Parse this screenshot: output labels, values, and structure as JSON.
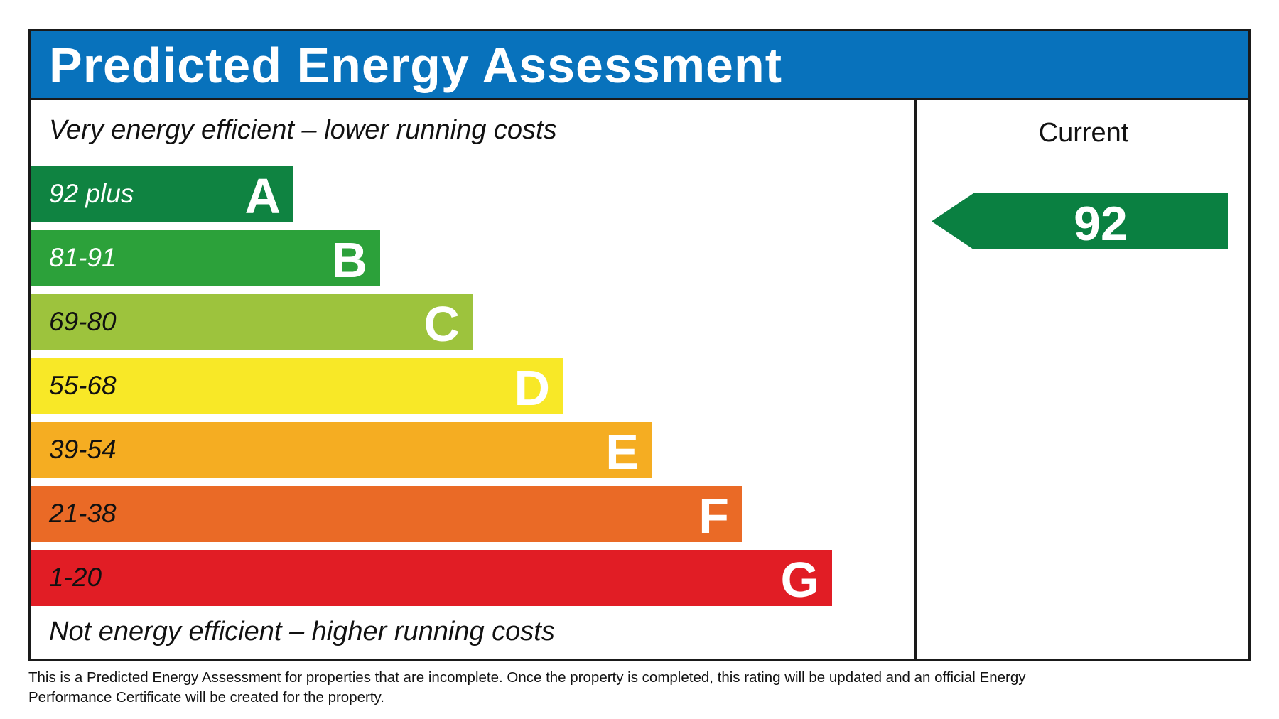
{
  "header": {
    "title": "Predicted Energy Assessment",
    "color": "#0872bc"
  },
  "top_note": "Very energy efficient – lower running costs",
  "bottom_note": "Not energy efficient – higher running costs",
  "bands": [
    {
      "range": "92 plus",
      "letter": "A",
      "color": "#0f8341",
      "text_color": "#ffffff"
    },
    {
      "range": "81-91",
      "letter": "B",
      "color": "#2ca13a",
      "text_color": "#ffffff"
    },
    {
      "range": "69-80",
      "letter": "C",
      "color": "#9dc33d",
      "text_color": "#111111"
    },
    {
      "range": "55-68",
      "letter": "D",
      "color": "#f8e827",
      "text_color": "#111111"
    },
    {
      "range": "39-54",
      "letter": "E",
      "color": "#f5ad22",
      "text_color": "#111111"
    },
    {
      "range": "21-38",
      "letter": "F",
      "color": "#ea6a26",
      "text_color": "#111111"
    },
    {
      "range": "1-20",
      "letter": "G",
      "color": "#e11d25",
      "text_color": "#111111"
    }
  ],
  "current": {
    "label": "Current",
    "value": "92",
    "color": "#0a8041"
  },
  "footer": "This is a Predicted Energy Assessment for properties that are incomplete. Once the property is completed, this rating will be updated and an official Energy Performance Certificate will be created for the property."
}
